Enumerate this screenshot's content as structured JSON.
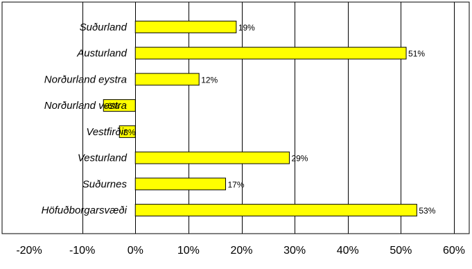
{
  "chart_data": {
    "type": "bar",
    "orientation": "horizontal",
    "categories": [
      "Suðurland",
      "Austurland",
      "Norðurland eystra",
      "Norðurland vestra",
      "Vestfirðir",
      "Vesturland",
      "Suðurnes",
      "Höfuðborgarsvæði"
    ],
    "values": [
      19,
      51,
      12,
      -6,
      -3,
      29,
      17,
      53
    ],
    "data_labels": [
      "19%",
      "51%",
      "12%",
      "-6%",
      "-3%",
      "29%",
      "17%",
      "53%"
    ],
    "xlim": [
      -20,
      60
    ],
    "xticks": [
      -20,
      -10,
      0,
      10,
      20,
      30,
      40,
      50,
      60
    ],
    "xtick_labels": [
      "-20%",
      "-10%",
      "0%",
      "10%",
      "20%",
      "30%",
      "40%",
      "50%",
      "60%"
    ],
    "title": "",
    "xlabel": "",
    "ylabel": "",
    "grid": "vertical",
    "bar_color": "#ffff00",
    "bar_edge_color": "#000000",
    "legend": "none"
  }
}
